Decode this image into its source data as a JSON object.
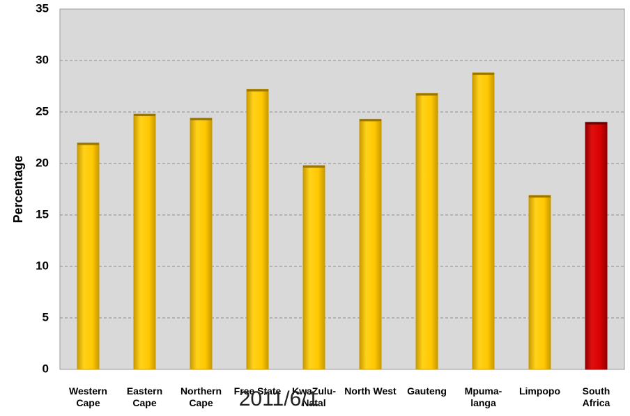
{
  "chart_data": {
    "type": "bar",
    "categories": [
      [
        "Western",
        "Cape"
      ],
      [
        "Eastern",
        "Cape"
      ],
      [
        "Northern",
        "Cape"
      ],
      [
        "Free State"
      ],
      [
        "KwaZulu-",
        "Natal"
      ],
      [
        "North West"
      ],
      [
        "Gauteng"
      ],
      [
        "Mpuma-",
        "langa"
      ],
      [
        "Limpopo"
      ],
      [
        "South",
        "Africa"
      ]
    ],
    "values": [
      22.0,
      24.8,
      24.4,
      27.2,
      19.8,
      24.3,
      26.8,
      28.8,
      16.9,
      24.0
    ],
    "highlight_index": 9,
    "ylabel": "Percentage",
    "ylim": [
      0,
      35
    ],
    "yticks": [
      0,
      5,
      10,
      15,
      20,
      25,
      30,
      35
    ],
    "grid": true,
    "legend": "none",
    "colors": {
      "bar": "#FFC800",
      "bar_dark": "#C99A00",
      "highlight": "#D80000",
      "highlight_dark": "#8E0000",
      "plot_bg": "#D9D9D9",
      "grid": "#8C8C8C"
    }
  },
  "watermark": "2011/6/1"
}
